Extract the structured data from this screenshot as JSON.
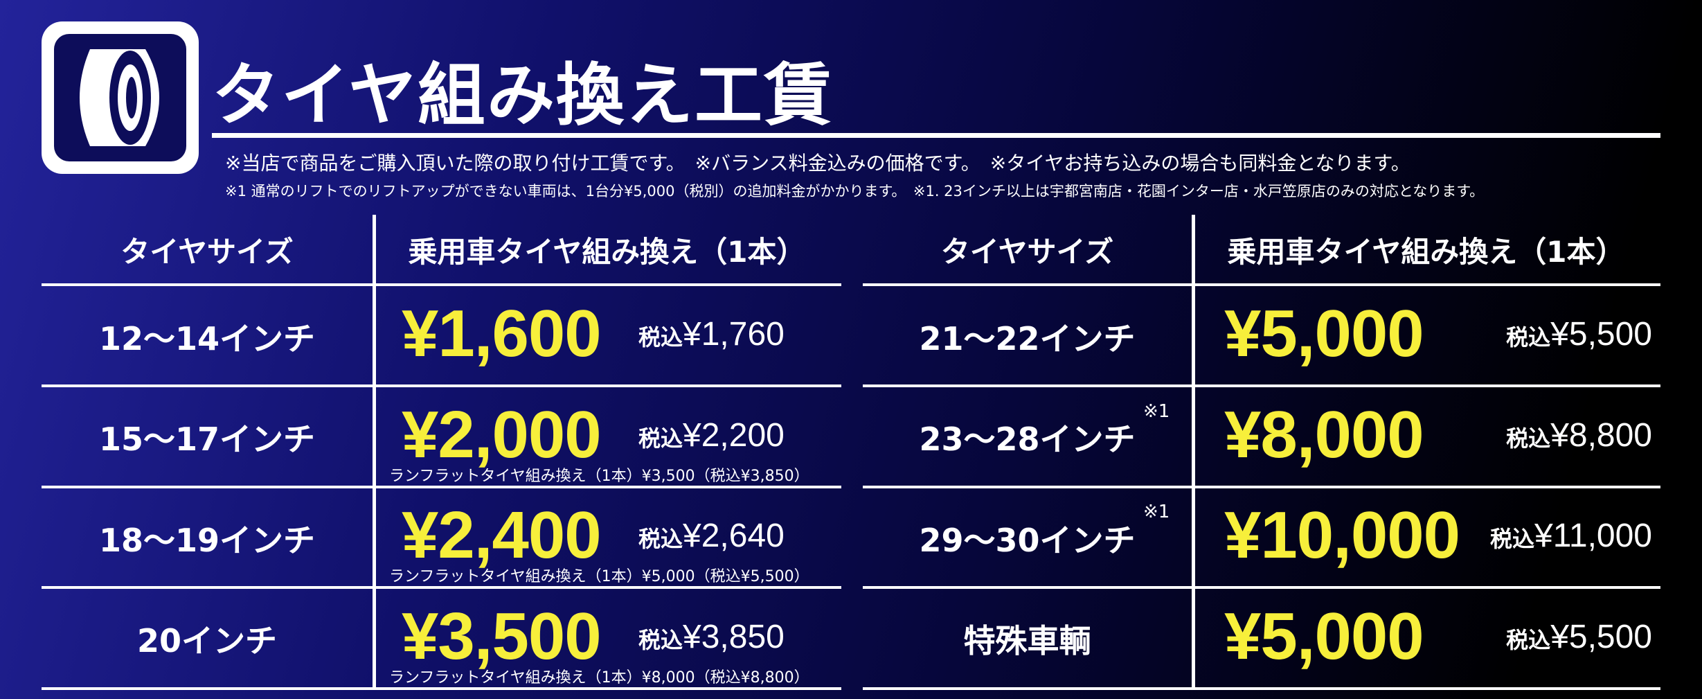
{
  "header": {
    "title": "タイヤ組み換え工賃",
    "icon": "tire-icon",
    "note1": "※当店で商品をご購入頂いた際の取り付け工賃です。　※バランス料金込みの価格です。　※タイヤお持ち込みの場合も同料金となります。",
    "note2": "※1 通常のリフトでのリフトアップができない車両は、1台分¥5,000（税別）の追加料金がかかります。　※1. 23インチ以上は宇都宮南店・花園インター店・水戸笠原店のみの対応となります。"
  },
  "colors": {
    "price": "#f7ef3b",
    "background_start": "#23239a",
    "background_end": "#000000"
  },
  "tables": [
    {
      "col_size": "タイヤサイズ",
      "col_price": "乗用車タイヤ組み換え（1本）",
      "rows": [
        {
          "size": "12〜14インチ",
          "price": "¥1,600",
          "tax_label": "税込",
          "tax": "¥1,760"
        },
        {
          "size": "15〜17インチ",
          "price": "¥2,000",
          "tax_label": "税込",
          "tax": "¥2,200",
          "runflat": "ランフラットタイヤ組み換え（1本）¥3,500（税込¥3,850）"
        },
        {
          "size": "18〜19インチ",
          "price": "¥2,400",
          "tax_label": "税込",
          "tax": "¥2,640",
          "runflat": "ランフラットタイヤ組み換え（1本）¥5,000（税込¥5,500）"
        },
        {
          "size": "20インチ",
          "price": "¥3,500",
          "tax_label": "税込",
          "tax": "¥3,850",
          "runflat": "ランフラットタイヤ組み換え（1本）¥8,000（税込¥8,800）"
        }
      ]
    },
    {
      "col_size": "タイヤサイズ",
      "col_price": "乗用車タイヤ組み換え（1本）",
      "rows": [
        {
          "size": "21〜22インチ",
          "price": "¥5,000",
          "tax_label": "税込",
          "tax": "¥5,500"
        },
        {
          "size": "23〜28インチ",
          "mark": "※1",
          "price": "¥8,000",
          "tax_label": "税込",
          "tax": "¥8,800"
        },
        {
          "size": "29〜30インチ",
          "mark": "※1",
          "price": "¥10,000",
          "tax_label": "税込",
          "tax": "¥11,000"
        },
        {
          "size": "特殊車輌",
          "price": "¥5,000",
          "tax_label": "税込",
          "tax": "¥5,500"
        }
      ]
    }
  ]
}
